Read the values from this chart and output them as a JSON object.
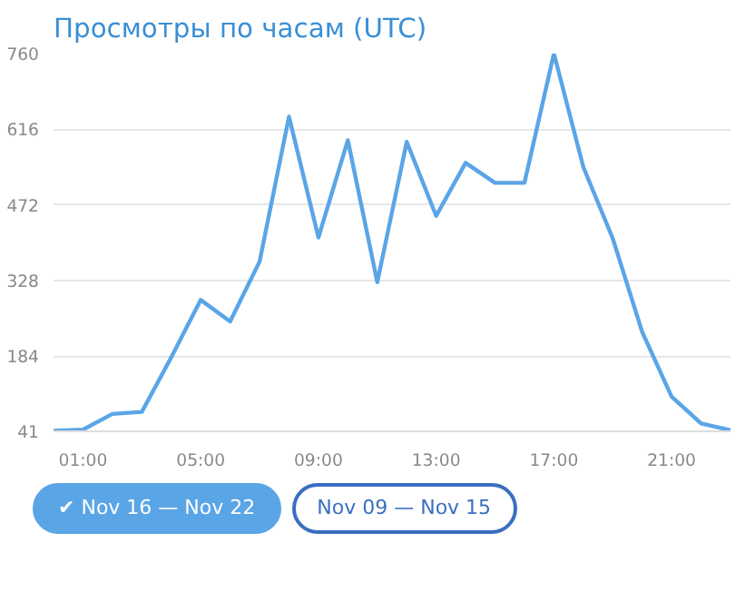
{
  "chart_data": {
    "type": "line",
    "title": "Просмотры по часам (UTC)",
    "x": [
      0,
      1,
      2,
      3,
      4,
      5,
      6,
      7,
      8,
      9,
      10,
      11,
      12,
      13,
      14,
      15,
      16,
      17,
      18,
      19,
      20,
      21,
      22,
      23
    ],
    "series": [
      {
        "color": "#5aa5e6",
        "values": [
          42,
          44,
          74,
          78,
          182,
          291,
          250,
          364,
          640,
          410,
          595,
          325,
          592,
          451,
          552,
          514,
          514,
          760,
          544,
          408,
          230,
          107,
          56,
          43
        ]
      }
    ],
    "xlim": [
      0,
      23
    ],
    "xticks": [
      {
        "value": 1,
        "label": "01:00"
      },
      {
        "value": 5,
        "label": "05:00"
      },
      {
        "value": 9,
        "label": "09:00"
      },
      {
        "value": 13,
        "label": "13:00"
      },
      {
        "value": 17,
        "label": "17:00"
      },
      {
        "value": 21,
        "label": "21:00"
      }
    ],
    "ylim": [
      41,
      760
    ],
    "yticks": [
      41,
      184,
      328,
      472,
      616,
      760
    ],
    "grid": "y",
    "marker": "none",
    "line_style": "solid",
    "annotations": [
      "✔ Nov 16 — Nov 22",
      "Nov 09 — Nov 15"
    ]
  }
}
